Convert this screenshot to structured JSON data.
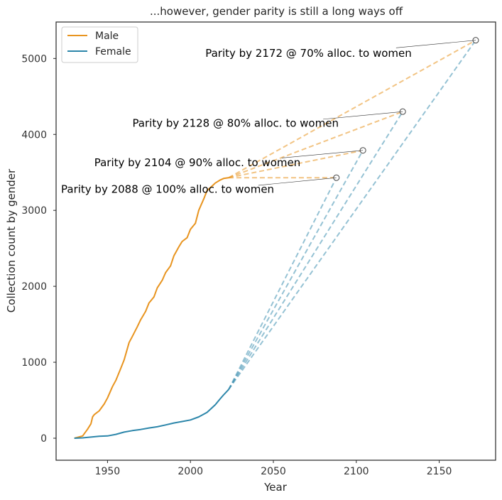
{
  "chart_data": {
    "type": "line",
    "title": "...however, gender parity is still a long ways off",
    "xlabel": "Year",
    "ylabel": "Collection count by gender",
    "xlim": [
      1919,
      2184
    ],
    "ylim": [
      -290,
      5480
    ],
    "x_ticks": [
      1950,
      2000,
      2050,
      2100,
      2150
    ],
    "y_ticks": [
      0,
      1000,
      2000,
      3000,
      4000,
      5000
    ],
    "grid": false,
    "legend": {
      "placement": "top-left",
      "entries": [
        "Male",
        "Female"
      ]
    },
    "colors": {
      "male": "#e8941f",
      "female": "#2c86aa"
    },
    "series": [
      {
        "name": "Male",
        "x": [
          1930,
          1935,
          1938,
          1940,
          1941,
          1942,
          1945,
          1948,
          1950,
          1953,
          1955,
          1958,
          1960,
          1963,
          1965,
          1968,
          1970,
          1973,
          1975,
          1978,
          1980,
          1983,
          1985,
          1988,
          1990,
          1993,
          1995,
          1998,
          2000,
          2003,
          2005,
          2008,
          2010,
          2013,
          2015,
          2018,
          2020,
          2023
        ],
        "y": [
          0,
          30,
          120,
          190,
          280,
          310,
          360,
          450,
          530,
          680,
          760,
          920,
          1030,
          1260,
          1340,
          1470,
          1560,
          1670,
          1780,
          1860,
          1980,
          2080,
          2180,
          2270,
          2400,
          2520,
          2590,
          2640,
          2750,
          2830,
          3000,
          3150,
          3260,
          3320,
          3360,
          3400,
          3420,
          3430
        ]
      },
      {
        "name": "Female",
        "x": [
          1930,
          1935,
          1940,
          1945,
          1950,
          1955,
          1960,
          1965,
          1970,
          1975,
          1980,
          1985,
          1990,
          1995,
          2000,
          2005,
          2010,
          2015,
          2018,
          2020,
          2023
        ],
        "y": [
          0,
          5,
          15,
          25,
          30,
          50,
          80,
          100,
          115,
          135,
          150,
          175,
          200,
          220,
          240,
          280,
          340,
          440,
          520,
          570,
          640
        ]
      }
    ],
    "projections": [
      {
        "label": "Parity by 2088 @ 100% alloc. to women",
        "start_year": 2023,
        "male_start": 3430,
        "female_start": 640,
        "end_year": 2088,
        "end_value": 3430,
        "label_year": 1922,
        "label_value": 3230,
        "line_from_year": 2041,
        "line_from_value": 3330
      },
      {
        "label": "Parity by 2104 @ 90% alloc. to women",
        "start_year": 2023,
        "male_start": 3430,
        "female_start": 640,
        "end_year": 2104,
        "end_value": 3790,
        "label_year": 1942,
        "label_value": 3580,
        "line_from_year": 2055,
        "line_from_value": 3690
      },
      {
        "label": "Parity by 2128 @ 80% alloc. to women",
        "start_year": 2023,
        "male_start": 3430,
        "female_start": 640,
        "end_year": 2128,
        "end_value": 4300,
        "label_year": 1965,
        "label_value": 4100,
        "line_from_year": 2080,
        "line_from_value": 4200
      },
      {
        "label": "Parity by 2172 @ 70% alloc. to women",
        "start_year": 2023,
        "male_start": 3430,
        "female_start": 640,
        "end_year": 2172,
        "end_value": 5240,
        "label_year": 2009,
        "label_value": 5020,
        "line_from_year": 2124,
        "line_from_value": 5140
      }
    ]
  }
}
